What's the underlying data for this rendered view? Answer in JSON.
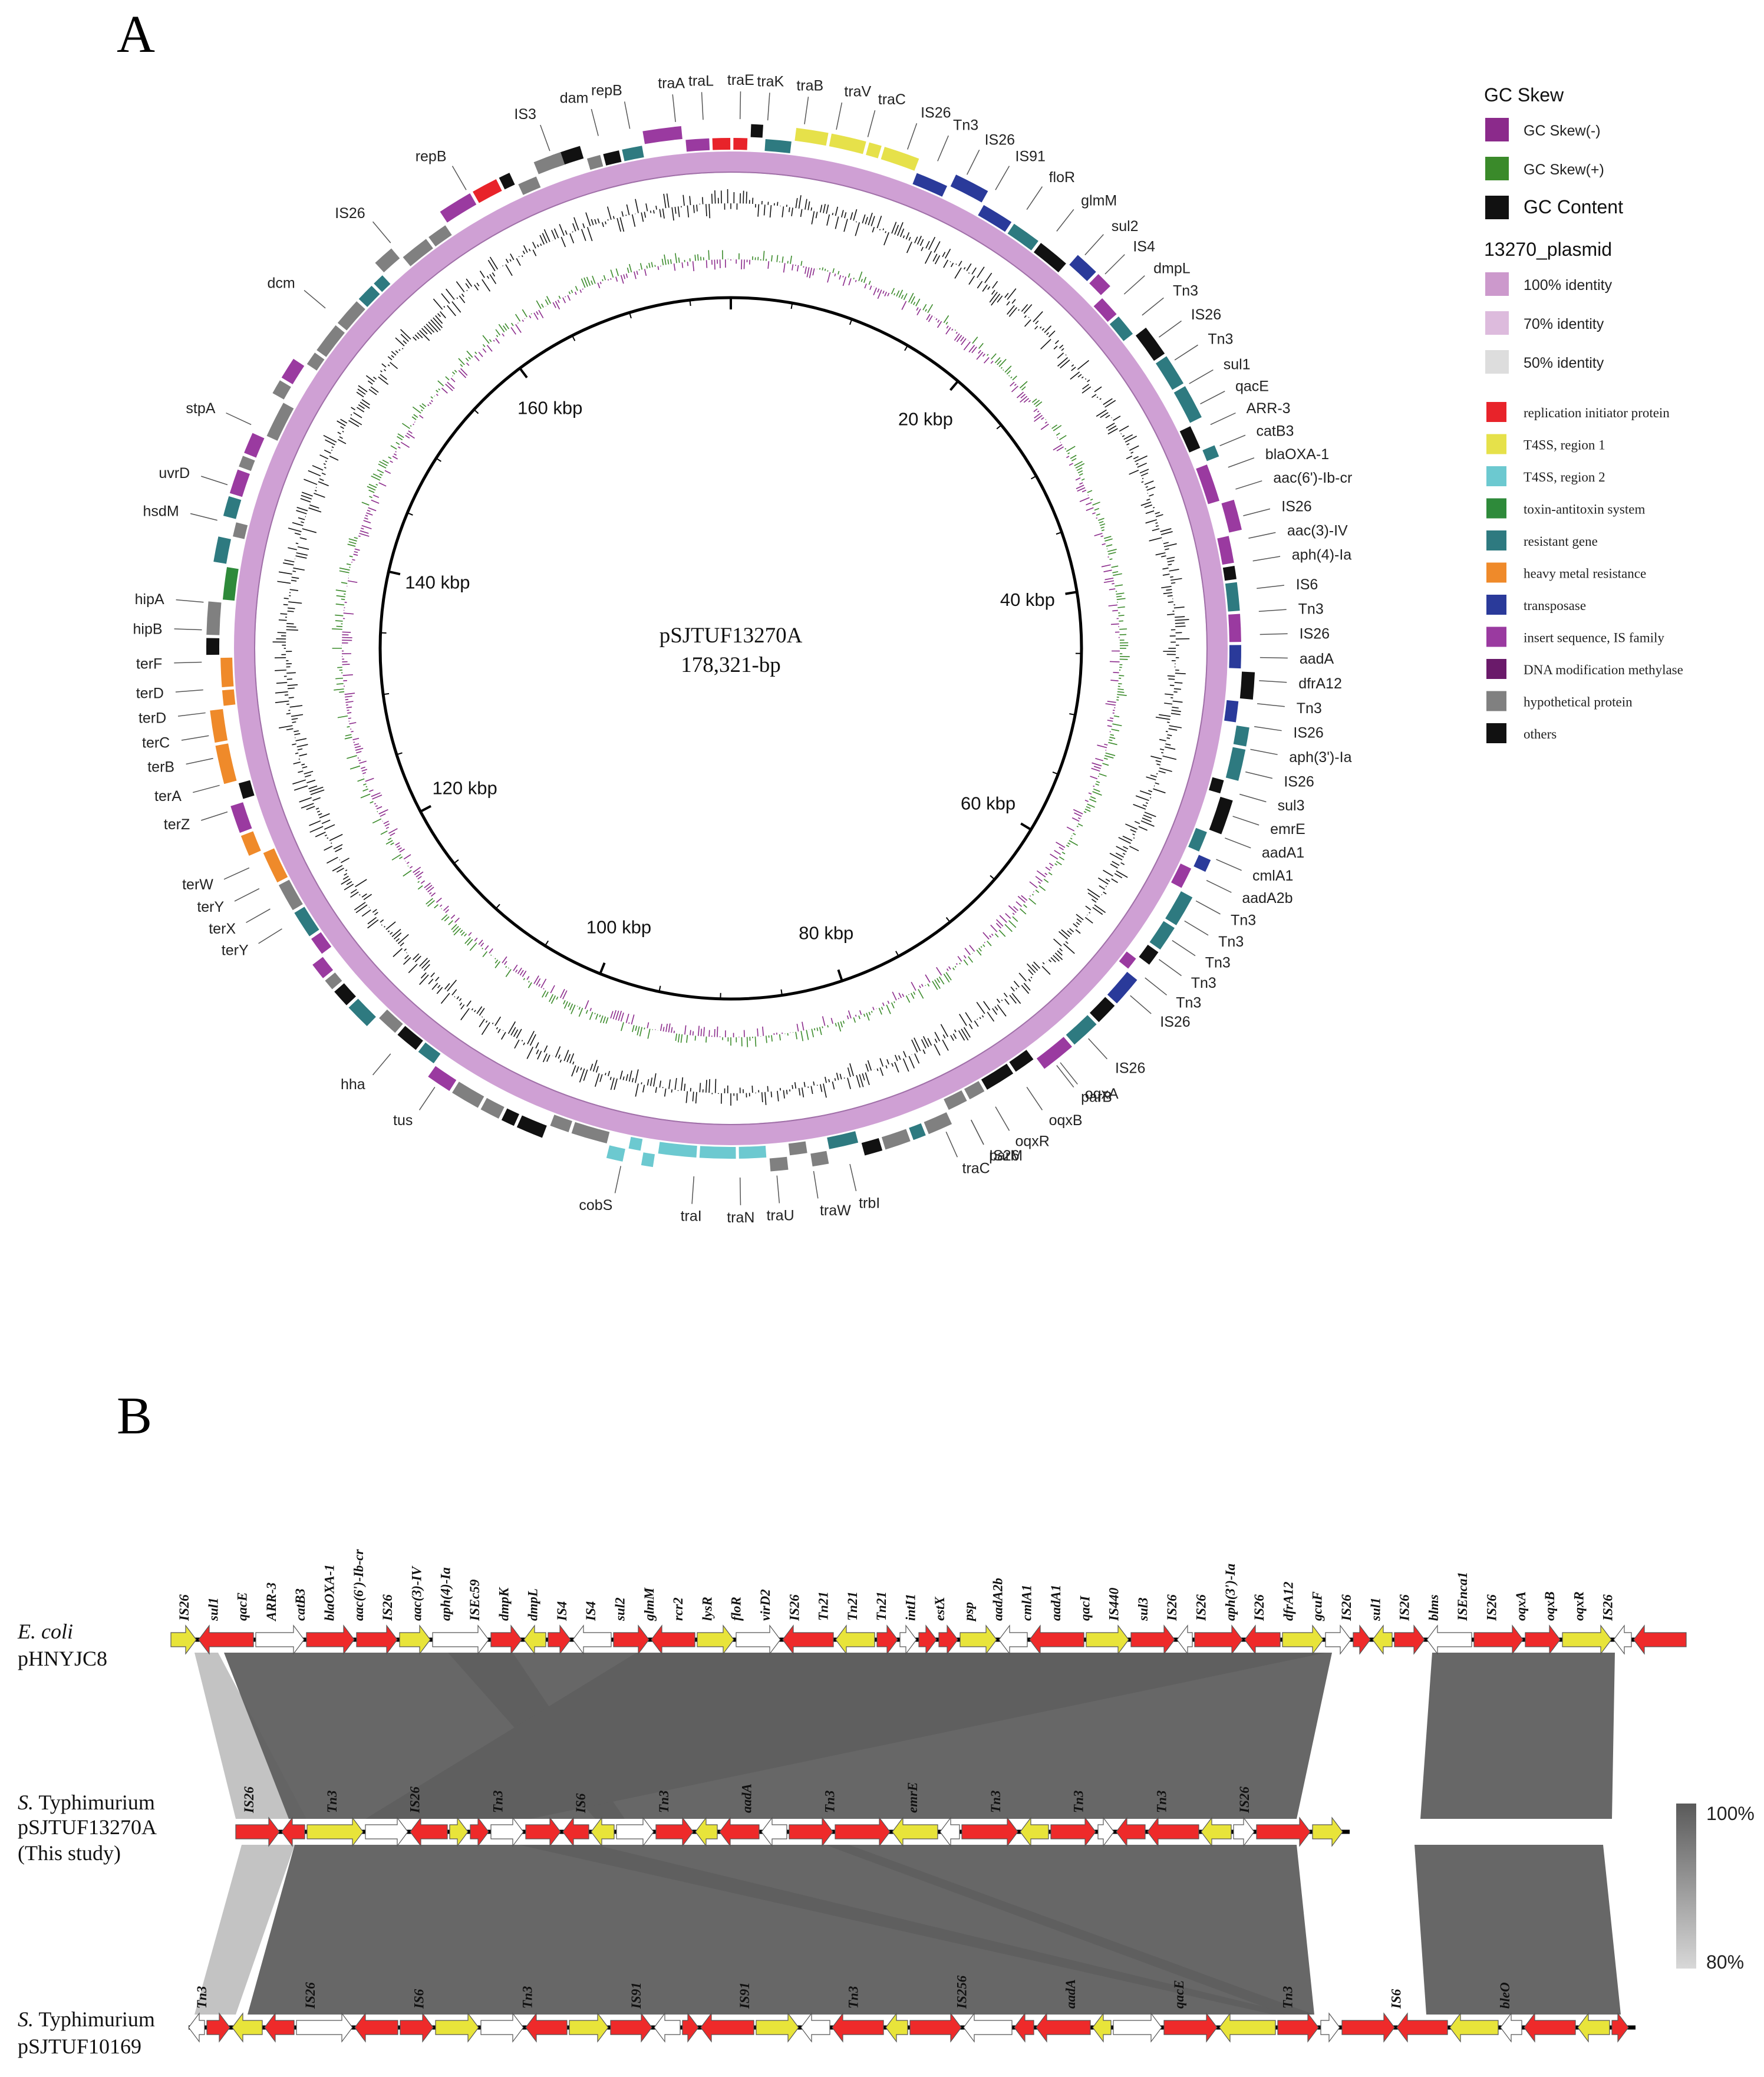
{
  "panels": {
    "a": "A",
    "b": "B"
  },
  "plasmid": {
    "name": "pSJTUF13270A",
    "size": "178,321-bp",
    "total_kbp": 178.321,
    "kbp_labels": [
      "20 kbp",
      "40 kbp",
      "60 kbp",
      "80 kbp",
      "100 kbp",
      "120 kbp",
      "140 kbp",
      "160 kbp"
    ],
    "gene_labels": [
      {
        "t": "dam",
        "a": -14.5
      },
      {
        "t": "repB",
        "a": -11
      },
      {
        "t": "traA",
        "a": -6
      },
      {
        "t": "traL",
        "a": -3
      },
      {
        "t": "traE",
        "a": 1
      },
      {
        "t": "traK",
        "a": 4
      },
      {
        "t": "traB",
        "a": 8
      },
      {
        "t": "traV",
        "a": 11.5
      },
      {
        "t": "traC",
        "a": 15
      },
      {
        "t": "IS26",
        "a": 19.5
      },
      {
        "t": "Tn3",
        "a": 23
      },
      {
        "t": "IS26",
        "a": 26.5
      },
      {
        "t": "IS91",
        "a": 30
      },
      {
        "t": "floR",
        "a": 34
      },
      {
        "t": "glmM",
        "a": 38
      },
      {
        "t": "sul2",
        "a": 42
      },
      {
        "t": "IS4",
        "a": 45
      },
      {
        "t": "dmpL",
        "a": 48
      },
      {
        "t": "Tn3",
        "a": 51
      },
      {
        "t": "IS26",
        "a": 54
      },
      {
        "t": "Tn3",
        "a": 57
      },
      {
        "t": "sul1",
        "a": 60
      },
      {
        "t": "qacE",
        "a": 62.5
      },
      {
        "t": "ARR-3",
        "a": 65
      },
      {
        "t": "catB3",
        "a": 67.5
      },
      {
        "t": "blaOXA-1",
        "a": 70
      },
      {
        "t": "aac(6')-Ib-cr",
        "a": 72.5
      },
      {
        "t": "IS26",
        "a": 75.5
      },
      {
        "t": "aac(3)-IV",
        "a": 78
      },
      {
        "t": "aph(4)-Ia",
        "a": 80.5
      },
      {
        "t": "IS6",
        "a": 83.5
      },
      {
        "t": "Tn3",
        "a": 86
      },
      {
        "t": "IS26",
        "a": 88.5
      },
      {
        "t": "aadA",
        "a": 91
      },
      {
        "t": "dfrA12",
        "a": 93.5
      },
      {
        "t": "Tn3",
        "a": 96
      },
      {
        "t": "IS26",
        "a": 98.5
      },
      {
        "t": "aph(3')-Ia",
        "a": 101
      },
      {
        "t": "IS26",
        "a": 103.5
      },
      {
        "t": "sul3",
        "a": 106
      },
      {
        "t": "emrE",
        "a": 108.5
      },
      {
        "t": "aadA1",
        "a": 111
      },
      {
        "t": "cmlA1",
        "a": 113.5
      },
      {
        "t": "aadA2b",
        "a": 116
      },
      {
        "t": "Tn3",
        "a": 118.5
      },
      {
        "t": "Tn3",
        "a": 121
      },
      {
        "t": "Tn3",
        "a": 123.5
      },
      {
        "t": "Tn3",
        "a": 126
      },
      {
        "t": "Tn3",
        "a": 128.5
      },
      {
        "t": "IS26",
        "a": 131
      },
      {
        "t": "IS26",
        "a": 137.5
      },
      {
        "t": "oqxA",
        "a": 141.5
      },
      {
        "t": "oqxB",
        "a": 146
      },
      {
        "t": "oqxR",
        "a": 150
      },
      {
        "t": "IS26",
        "a": 153
      },
      {
        "t": "traC",
        "a": 156
      },
      {
        "t": "parB",
        "a": 142
      },
      {
        "t": "parM",
        "a": 153
      },
      {
        "t": "trbI",
        "a": 167
      },
      {
        "t": "traW",
        "a": 171
      },
      {
        "t": "traU",
        "a": 175
      },
      {
        "t": "traN",
        "a": 179
      },
      {
        "t": "traI",
        "a": 184
      },
      {
        "t": "cobS",
        "a": 192
      },
      {
        "t": "tus",
        "a": 214
      },
      {
        "t": "hha",
        "a": 220
      },
      {
        "t": "terY",
        "a": 238
      },
      {
        "t": "terX",
        "a": 240.5
      },
      {
        "t": "terY",
        "a": 243
      },
      {
        "t": "terW",
        "a": 245.5
      },
      {
        "t": "terZ",
        "a": 252
      },
      {
        "t": "terA",
        "a": 255
      },
      {
        "t": "terB",
        "a": 258
      },
      {
        "t": "terC",
        "a": 260.5
      },
      {
        "t": "terD",
        "a": 263
      },
      {
        "t": "terD",
        "a": 265.5
      },
      {
        "t": "terF",
        "a": 268.5
      },
      {
        "t": "hipB",
        "a": 272
      },
      {
        "t": "hipA",
        "a": 275
      },
      {
        "t": "hsdM",
        "a": 284
      },
      {
        "t": "uvrD",
        "a": 288
      },
      {
        "t": "stpA",
        "a": 295
      },
      {
        "t": "dcm",
        "a": 310
      },
      {
        "t": "IS26",
        "a": 320
      },
      {
        "t": "repB",
        "a": 330
      },
      {
        "t": "IS3",
        "a": 340
      }
    ]
  },
  "legend": {
    "gc_title": "GC Skew",
    "gc_items": [
      {
        "label": "GC Skew(-)",
        "color": "#8b2a8b"
      },
      {
        "label": "GC Skew(+)",
        "color": "#3a8a2a"
      },
      {
        "label": "GC Content",
        "color": "#111111"
      }
    ],
    "id_title": "13270_plasmid",
    "id_items": [
      {
        "label": "100% identity",
        "color": "#cc99cc"
      },
      {
        "label": "70% identity",
        "color": "#ddbbdd"
      },
      {
        "label": "50% identity",
        "color": "#dddddd"
      }
    ],
    "feat_items": [
      {
        "label": "replication initiator protein",
        "color": "#e8232a"
      },
      {
        "label": "T4SS, region 1",
        "color": "#e6e14a"
      },
      {
        "label": "T4SS, region 2",
        "color": "#6cc9d0"
      },
      {
        "label": "toxin-antitoxin system",
        "color": "#2e8a3a"
      },
      {
        "label": "resistant gene",
        "color": "#2e7a80"
      },
      {
        "label": "heavy metal resistance",
        "color": "#ef8a2a"
      },
      {
        "label": "transposase",
        "color": "#2a3a9a"
      },
      {
        "label": "insert sequence, IS family",
        "color": "#9a3aa0"
      },
      {
        "label": "DNA modification methylase",
        "color": "#6a1a6a"
      },
      {
        "label": "hypothetical protein",
        "color": "#808080"
      },
      {
        "label": "others",
        "color": "#111111"
      }
    ]
  },
  "tracks": [
    {
      "species": "E. coli",
      "species_prefix": "",
      "species_rest": "",
      "name": "pHNYJC8",
      "extra": ""
    },
    {
      "species": "",
      "species_prefix": "S.",
      "species_rest": " Typhimurium",
      "name": "pSJTUF13270A",
      "extra": "(This study)"
    },
    {
      "species": "",
      "species_prefix": "S.",
      "species_rest": " Typhimurium",
      "name": "pSJTUF10169",
      "extra": ""
    }
  ],
  "track_genes": [
    [
      "IS26",
      "sul1",
      "qacE",
      "ARR-3",
      "catB3",
      "blaOXA-1",
      "aac(6')-Ib-cr",
      "IS26",
      "aac(3)-IV",
      "aph(4)-Ia",
      "ISEc59",
      "dmpK",
      "dmpL",
      "IS4",
      "IS4",
      "sul2",
      "glmM",
      "rcr2",
      "lysR",
      "floR",
      "virD2",
      "IS26",
      "Tn21",
      "Tn21",
      "Tn21",
      "intI1",
      "estX",
      "psp",
      "aadA2b",
      "cmlA1",
      "aadA1",
      "qacI",
      "IS440",
      "sul3",
      "IS26",
      "IS26",
      "aph(3')-Ia",
      "IS26",
      "dfrA12",
      "gcuF",
      "IS26",
      "sul1",
      "IS26",
      "blms",
      "ISEnca1",
      "IS26",
      "oqxA",
      "oqxB",
      "oqxR",
      "IS26"
    ],
    [
      "IS26",
      "Tn3",
      "IS26",
      "Tn3",
      "IS6",
      "Tn3",
      "aadA",
      "Tn3",
      "emrE",
      "Tn3",
      "Tn3",
      "Tn3",
      "IS26"
    ],
    [
      "Tn3",
      "IS26",
      "IS6",
      "Tn3",
      "IS91",
      "IS91",
      "Tn3",
      "IS256",
      "aadA",
      "qacE",
      "Tn3",
      "IS6",
      "bleO"
    ]
  ],
  "scale": {
    "max": "100%",
    "min": "80%"
  }
}
